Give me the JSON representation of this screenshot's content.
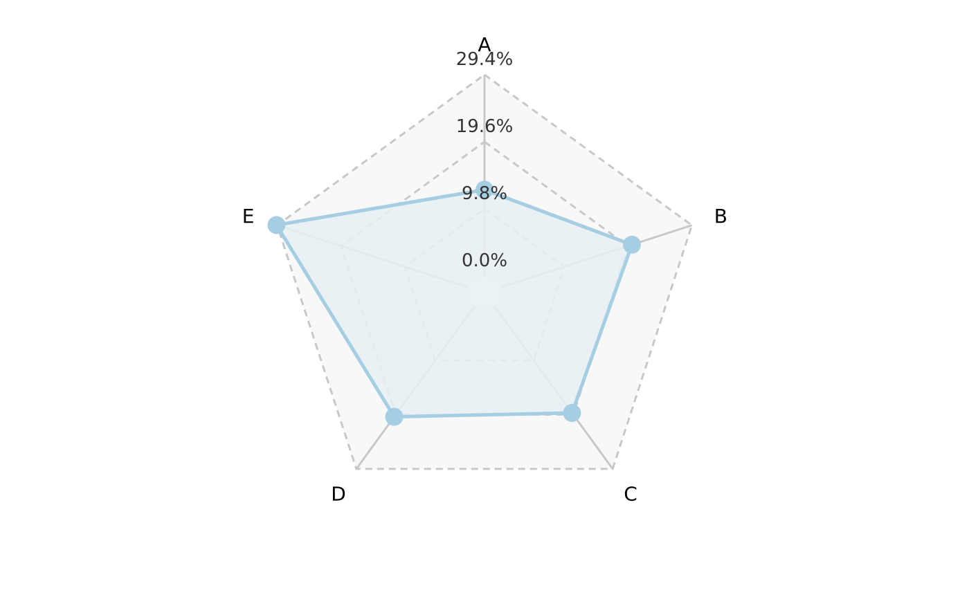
{
  "chart_data": {
    "type": "radar",
    "title": "",
    "axes": [
      "A",
      "B",
      "C",
      "D",
      "E"
    ],
    "rlim": [
      0,
      29.4
    ],
    "ticks": [
      0,
      9.8,
      19.6,
      29.4
    ],
    "tick_labels": [
      "0.0%",
      "9.8%",
      "19.6%",
      "29.4%"
    ],
    "grid": true,
    "grid_style": "dashed",
    "series": [
      {
        "values": [
          12.6,
          20.2,
          19.3,
          20.0,
          29.5
        ]
      }
    ],
    "colors": {
      "series": "#a6cee3",
      "fill": "#e8f0f4",
      "grid": "#c8c8c8",
      "background": "#f8f8f8",
      "axis_text": "#000000",
      "tick_text": "#333333"
    }
  }
}
